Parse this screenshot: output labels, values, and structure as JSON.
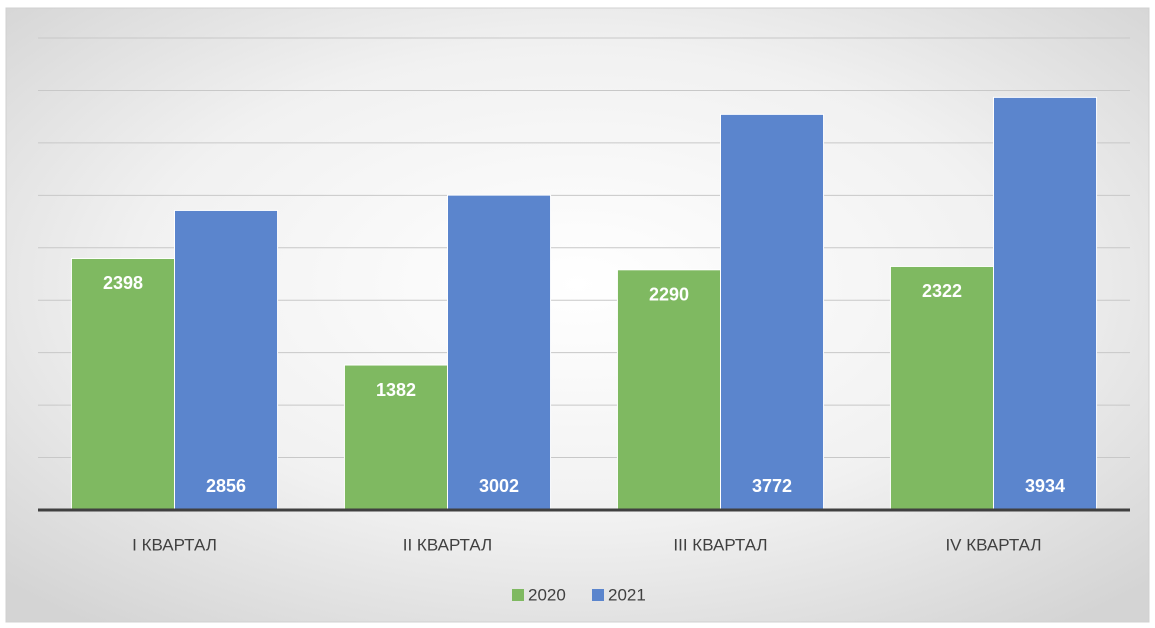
{
  "chart_data": {
    "type": "bar",
    "categories": [
      "I КВАРТАЛ",
      "II КВАРТАЛ",
      "III КВАРТАЛ",
      "IV КВАРТАЛ"
    ],
    "series": [
      {
        "name": "2020",
        "color": "#7fb961",
        "values": [
          2398,
          1382,
          2290,
          2322
        ]
      },
      {
        "name": "2021",
        "color": "#5b85cd",
        "values": [
          2856,
          3002,
          3772,
          3934
        ]
      }
    ],
    "ylim": [
      0,
      4500
    ],
    "yticks": [
      0,
      500,
      1000,
      1500,
      2000,
      2500,
      3000,
      3500,
      4000,
      4500
    ],
    "grid": true,
    "legend": "bottom"
  }
}
